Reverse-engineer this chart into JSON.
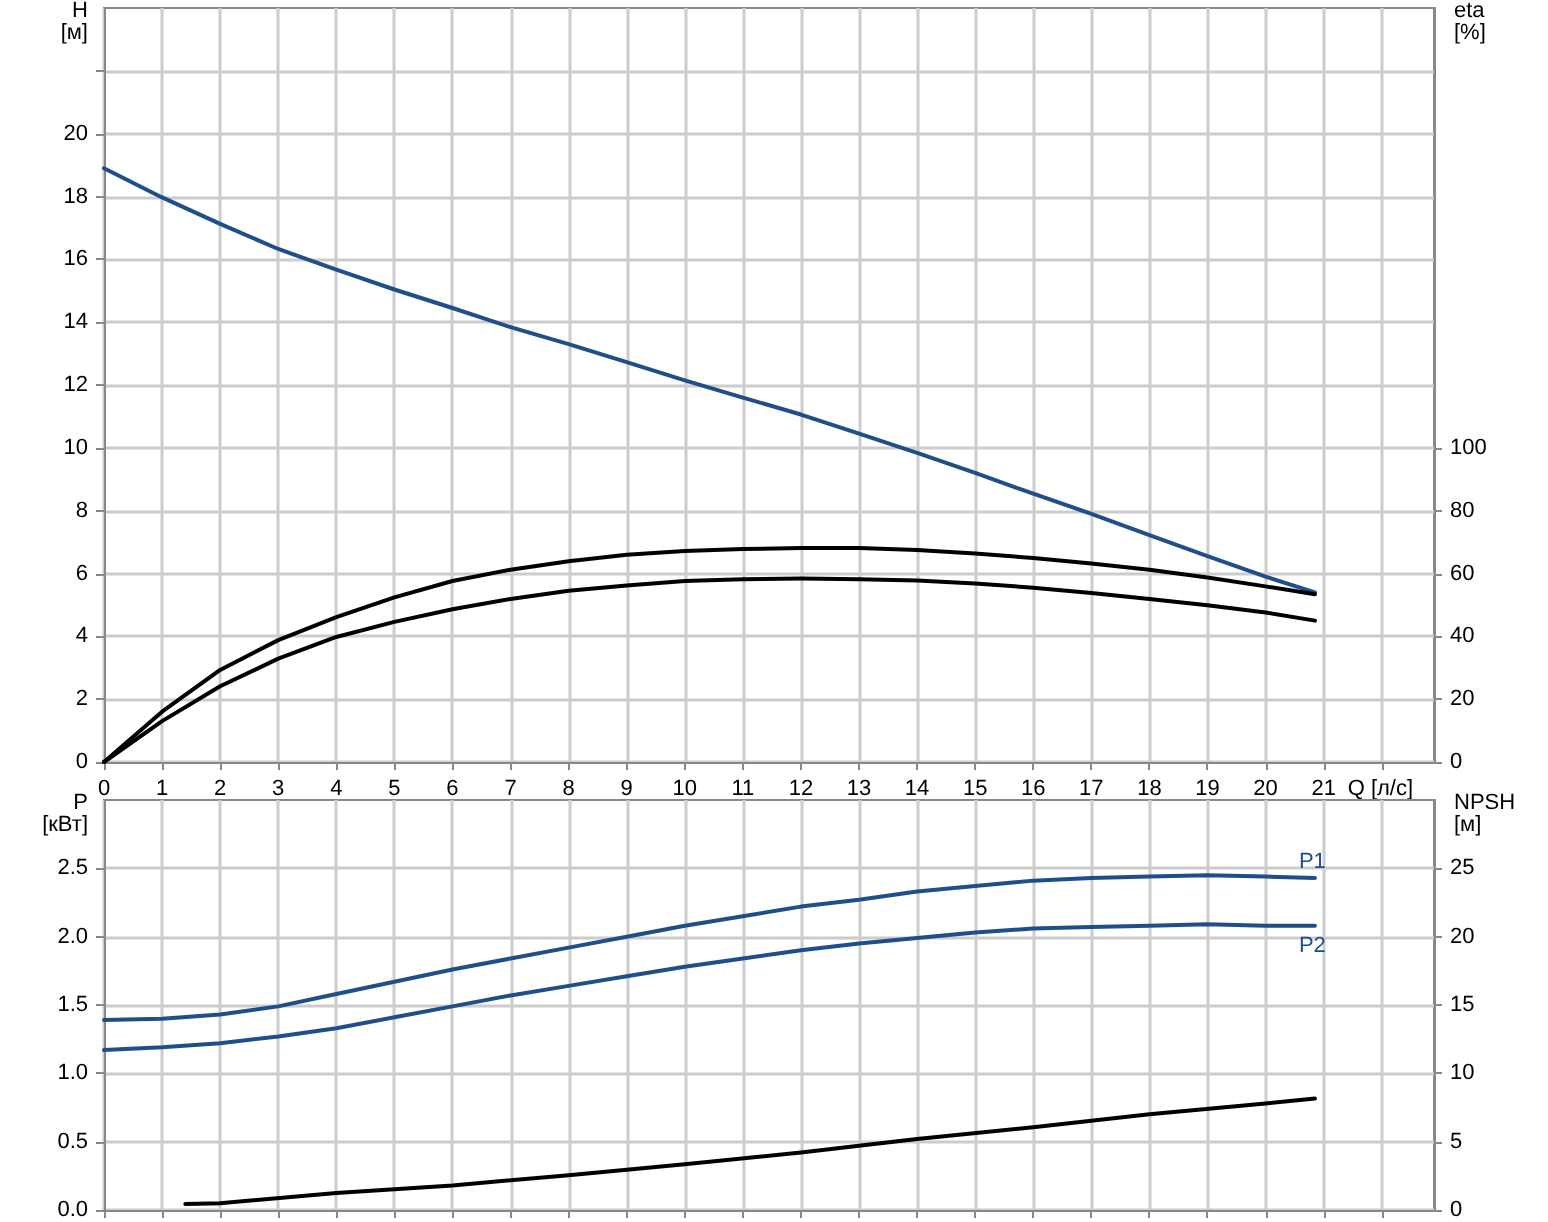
{
  "chart_data": [
    {
      "type": "line",
      "xlabel": "Q [л/с]",
      "ylabel": "H [м]",
      "y2label": "eta [%]",
      "grid": true,
      "legend": false,
      "marker": "none",
      "line_style": "solid",
      "x": [
        0,
        1,
        2,
        3,
        4,
        5,
        6,
        7,
        8,
        9,
        10,
        11,
        12,
        13,
        14,
        15,
        16,
        17,
        18,
        19,
        20,
        20.85
      ],
      "xlim": [
        0,
        22.9
      ],
      "xticks": [
        0,
        1,
        2,
        3,
        4,
        5,
        6,
        7,
        8,
        9,
        10,
        11,
        12,
        13,
        14,
        15,
        16,
        17,
        18,
        19,
        20,
        21,
        {
          "value": 22,
          "label": null
        }
      ],
      "ylim": [
        0,
        24
      ],
      "yticks": [
        0,
        2,
        4,
        6,
        8,
        10,
        12,
        14,
        16,
        18,
        20,
        {
          "value": 22,
          "label": null
        }
      ],
      "y2lim": [
        0,
        240
      ],
      "y2ticks": [
        0,
        20,
        40,
        60,
        80,
        100
      ],
      "series": [
        {
          "color": "#1f4f8a",
          "values": [
            18.9,
            17.97,
            17.13,
            16.33,
            15.67,
            15.04,
            14.45,
            13.84,
            13.3,
            12.73,
            12.15,
            11.6,
            11.06,
            10.45,
            9.84,
            9.2,
            8.54,
            7.9,
            7.22,
            6.55,
            5.9,
            5.4
          ]
        },
        {
          "color": "#000000",
          "axis": "y2",
          "values": [
            0,
            16,
            29.3,
            38.8,
            46.1,
            52.4,
            57.6,
            61.2,
            63.9,
            66,
            67.2,
            67.8,
            68.1,
            68.1,
            67.5,
            66.4,
            64.9,
            63.2,
            61.2,
            58.7,
            55.9,
            53.4
          ]
        },
        {
          "color": "#000000",
          "axis": "y2",
          "values": [
            0,
            13,
            24.1,
            32.9,
            39.8,
            44.6,
            48.6,
            51.9,
            54.5,
            56.2,
            57.6,
            58.2,
            58.4,
            58.2,
            57.8,
            56.8,
            55.5,
            53.8,
            51.9,
            49.9,
            47.6,
            45
          ]
        }
      ]
    },
    {
      "type": "line",
      "ylabel": "P [кВт]",
      "y2label": "NPSH [м]",
      "grid": true,
      "legend": false,
      "marker": "none",
      "line_style": "solid",
      "tick_labels": "y",
      "x": [
        0,
        1,
        2,
        3,
        4,
        5,
        6,
        7,
        8,
        9,
        10,
        11,
        12,
        13,
        14,
        15,
        16,
        17,
        18,
        19,
        20,
        20.85
      ],
      "xlim": [
        0,
        22.9
      ],
      "xticks": [
        {
          "value": 0,
          "label": null
        },
        {
          "value": 1,
          "label": null
        },
        {
          "value": 2,
          "label": null
        },
        {
          "value": 3,
          "label": null
        },
        {
          "value": 4,
          "label": null
        },
        {
          "value": 5,
          "label": null
        },
        {
          "value": 6,
          "label": null
        },
        {
          "value": 7,
          "label": null
        },
        {
          "value": 8,
          "label": null
        },
        {
          "value": 9,
          "label": null
        },
        {
          "value": 10,
          "label": null
        },
        {
          "value": 11,
          "label": null
        },
        {
          "value": 12,
          "label": null
        },
        {
          "value": 13,
          "label": null
        },
        {
          "value": 14,
          "label": null
        },
        {
          "value": 15,
          "label": null
        },
        {
          "value": 16,
          "label": null
        },
        {
          "value": 17,
          "label": null
        },
        {
          "value": 18,
          "label": null
        },
        {
          "value": 19,
          "label": null
        },
        {
          "value": 20,
          "label": null
        },
        {
          "value": 21,
          "label": null
        },
        {
          "value": 22,
          "label": null
        }
      ],
      "ylim": [
        0,
        3
      ],
      "yticks": [
        {
          "value": 0,
          "label": "0.0"
        },
        0.5,
        {
          "value": 1,
          "label": "1.0"
        },
        1.5,
        {
          "value": 2,
          "label": "2.0"
        },
        2.5
      ],
      "y2lim": [
        0,
        30
      ],
      "y2ticks": [
        0,
        5,
        10,
        15,
        20,
        25
      ],
      "series": [
        {
          "name": "P1",
          "color": "#1f4f8a",
          "values": [
            1.39,
            1.4,
            1.43,
            1.49,
            1.58,
            1.67,
            1.76,
            1.84,
            1.92,
            2,
            2.08,
            2.15,
            2.22,
            2.27,
            2.33,
            2.37,
            2.41,
            2.43,
            2.44,
            2.45,
            2.44,
            2.43
          ]
        },
        {
          "name": "P2",
          "color": "#1f4f8a",
          "values": [
            1.17,
            1.19,
            1.22,
            1.27,
            1.33,
            1.41,
            1.49,
            1.57,
            1.64,
            1.71,
            1.78,
            1.84,
            1.9,
            1.95,
            1.99,
            2.03,
            2.06,
            2.07,
            2.08,
            2.09,
            2.08,
            2.08
          ]
        },
        {
          "color": "#000000",
          "axis": "y2",
          "x": [
            1.4,
            2,
            4,
            6,
            8,
            10,
            12,
            14,
            16,
            18,
            20,
            20.85
          ],
          "values": [
            0.44,
            0.5,
            1.24,
            1.8,
            2.55,
            3.35,
            4.2,
            5.2,
            6.05,
            7,
            7.8,
            8.16
          ]
        }
      ]
    }
  ]
}
